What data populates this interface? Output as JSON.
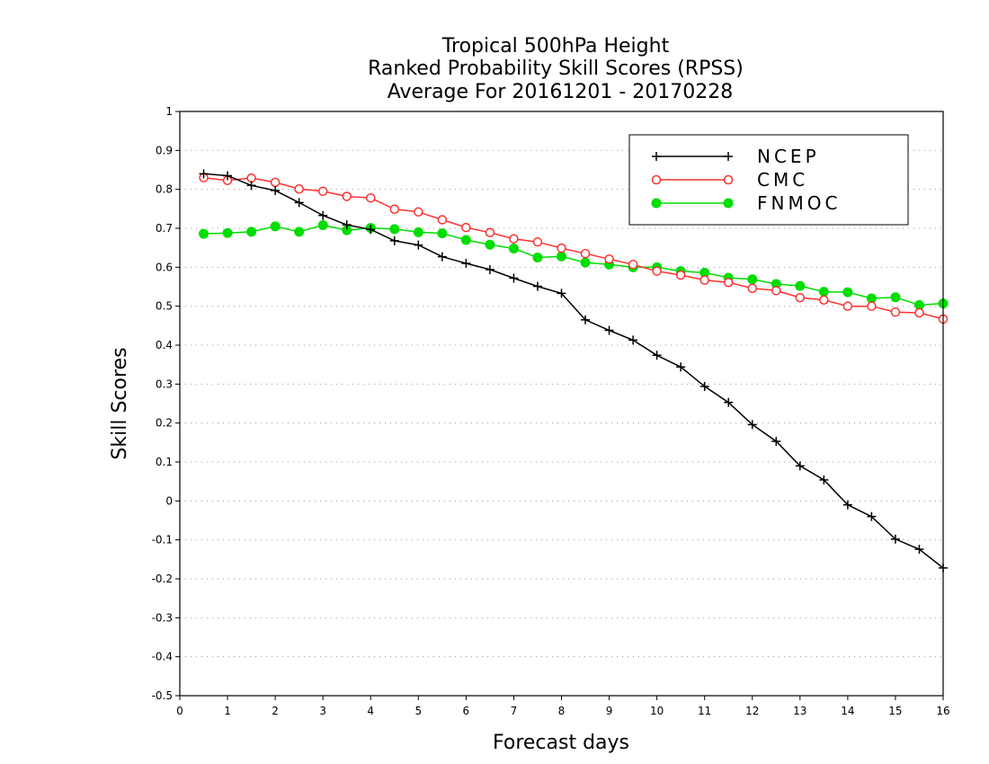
{
  "chart_data": {
    "type": "line",
    "title": [
      "Tropical 500hPa Height",
      "Ranked Probability Skill Scores (RPSS)",
      "Average For 20161201 - 20170228"
    ],
    "xlabel": "Forecast days",
    "ylabel": "Skill Scores",
    "xlim": [
      0,
      16
    ],
    "ylim": [
      -0.5,
      1
    ],
    "xticks": [
      "0",
      "1",
      "2",
      "3",
      "4",
      "5",
      "6",
      "7",
      "8",
      "9",
      "10",
      "11",
      "12",
      "13",
      "14",
      "15",
      "16"
    ],
    "yticks": [
      "1",
      "0.9",
      "0.8",
      "0.7",
      "0.6",
      "0.5",
      "0.4",
      "0.3",
      "0.2",
      "0.1",
      "0",
      "-0.1",
      "-0.2",
      "-0.3",
      "-0.4",
      "-0.5"
    ],
    "grid": "horizontal-dotted",
    "legend_position": "top-right",
    "x": [
      0.5,
      1,
      1.5,
      2,
      2.5,
      3,
      3.5,
      4,
      4.5,
      5,
      5.5,
      6,
      6.5,
      7,
      7.5,
      8,
      8.5,
      9,
      9.5,
      10,
      10.5,
      11,
      11.5,
      12,
      12.5,
      13,
      13.5,
      14,
      14.5,
      15,
      15.5,
      16
    ],
    "series": [
      {
        "name": "NCEP",
        "color": "#000000",
        "marker": "plus",
        "values": [
          0.84,
          0.835,
          0.81,
          0.797,
          0.766,
          0.733,
          0.709,
          0.697,
          0.668,
          0.657,
          0.627,
          0.61,
          0.594,
          0.572,
          0.551,
          0.533,
          0.465,
          0.438,
          0.413,
          0.374,
          0.344,
          0.294,
          0.253,
          0.196,
          0.153,
          0.09,
          0.054,
          -0.01,
          -0.04,
          -0.098,
          -0.124,
          -0.172
        ]
      },
      {
        "name": "CMC",
        "color": "#ff3030",
        "marker": "open-circle",
        "values": [
          0.83,
          0.823,
          0.829,
          0.818,
          0.801,
          0.795,
          0.782,
          0.778,
          0.749,
          0.742,
          0.722,
          0.702,
          0.689,
          0.673,
          0.665,
          0.649,
          0.635,
          0.621,
          0.607,
          0.59,
          0.58,
          0.567,
          0.561,
          0.546,
          0.54,
          0.522,
          0.516,
          0.5,
          0.5,
          0.485,
          0.483,
          0.467
        ]
      },
      {
        "name": "FNMOC",
        "color": "#00dd00",
        "marker": "filled-circle",
        "values": [
          0.686,
          0.688,
          0.691,
          0.705,
          0.691,
          0.708,
          0.695,
          0.701,
          0.698,
          0.69,
          0.687,
          0.67,
          0.658,
          0.648,
          0.625,
          0.628,
          0.612,
          0.607,
          0.6,
          0.6,
          0.59,
          0.586,
          0.573,
          0.569,
          0.557,
          0.552,
          0.537,
          0.536,
          0.52,
          0.523,
          0.503,
          0.507
        ]
      }
    ]
  }
}
